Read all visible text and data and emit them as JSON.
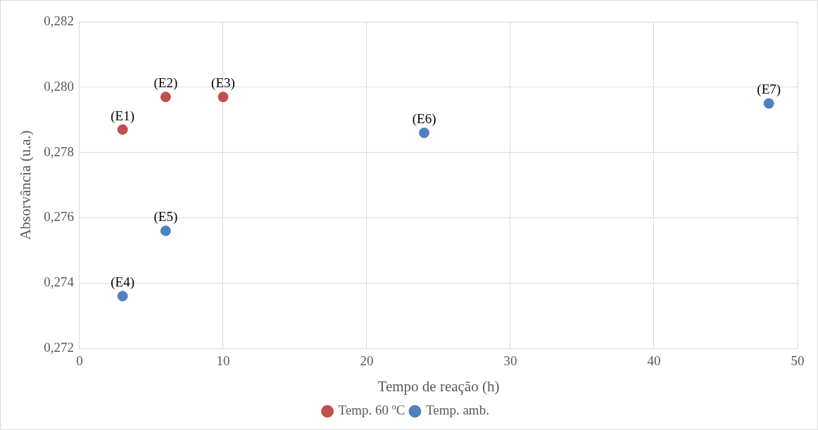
{
  "chart_data": {
    "type": "scatter",
    "xlabel": "Tempo de reação (h)",
    "ylabel": "Absorvância (u.a.)",
    "series": [
      {
        "name": "Temp. 60 ºC",
        "color": "#c0504d",
        "x": [
          3,
          6,
          10
        ],
        "values": [
          0.2787,
          0.2797,
          0.2797
        ]
      },
      {
        "name": "Temp. amb.",
        "color": "#4f81bd",
        "x": [
          3,
          6,
          24,
          48
        ],
        "values": [
          0.2736,
          0.2756,
          0.2786,
          0.2795
        ]
      }
    ],
    "xlim": [
      0,
      50
    ],
    "xticks": [
      0,
      10,
      20,
      30,
      40,
      50
    ],
    "ylim": [
      0.272,
      0.282
    ],
    "yticks": [
      {
        "value": 0.272,
        "label": "0,272"
      },
      {
        "value": 0.274,
        "label": "0,274"
      },
      {
        "value": 0.276,
        "label": "0,276"
      },
      {
        "value": 0.278,
        "label": "0,278"
      },
      {
        "value": 0.28,
        "label": "0,280"
      },
      {
        "value": 0.282,
        "label": "0,282"
      }
    ],
    "grid": true,
    "legend": "bottom",
    "marker": "circle",
    "annotations": [
      {
        "text": "(E1)",
        "x": 3,
        "y": 0.2787
      },
      {
        "text": "(E2)",
        "x": 6,
        "y": 0.2797
      },
      {
        "text": "(E3)",
        "x": 10,
        "y": 0.2797
      },
      {
        "text": "(E4)",
        "x": 3,
        "y": 0.2736
      },
      {
        "text": "(E5)",
        "x": 6,
        "y": 0.2756
      },
      {
        "text": "(E6)",
        "x": 24,
        "y": 0.2786
      },
      {
        "text": "(E7)",
        "x": 48,
        "y": 0.2795
      }
    ]
  }
}
